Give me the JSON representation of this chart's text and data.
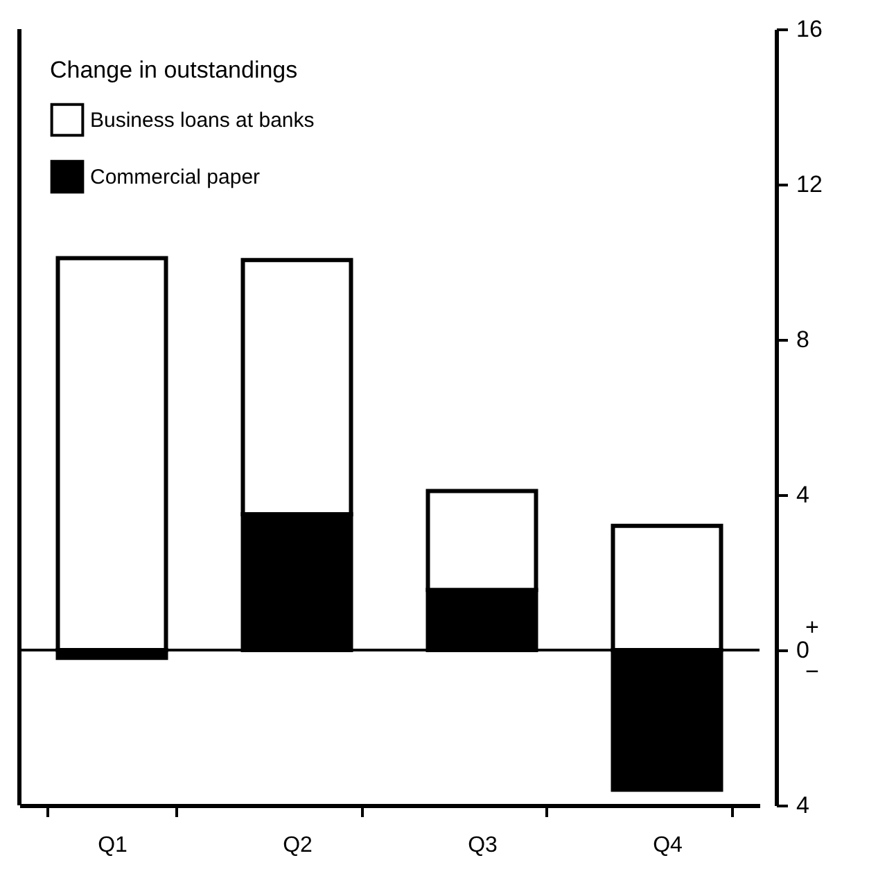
{
  "chart_data": {
    "type": "bar",
    "stacked": true,
    "legend_title": "Change in outstandings",
    "categories": [
      "Q1",
      "Q2",
      "Q3",
      "Q4"
    ],
    "series": [
      {
        "name": "Commercial paper",
        "color": "#000000",
        "values": [
          -0.2,
          3.5,
          1.55,
          -3.6
        ]
      },
      {
        "name": "Business loans at banks",
        "color": "#ffffff",
        "values": [
          10.1,
          6.55,
          2.55,
          3.2
        ]
      }
    ],
    "ylim": [
      -4,
      16
    ],
    "yticks": [
      {
        "value": -4,
        "label": "4"
      },
      0,
      4,
      8,
      12,
      16
    ],
    "ref_lines": [
      {
        "axis": "y",
        "value": 0,
        "color": "#000000"
      }
    ],
    "annotations": [
      "+",
      "−"
    ],
    "legend": "top left",
    "grid": false
  }
}
